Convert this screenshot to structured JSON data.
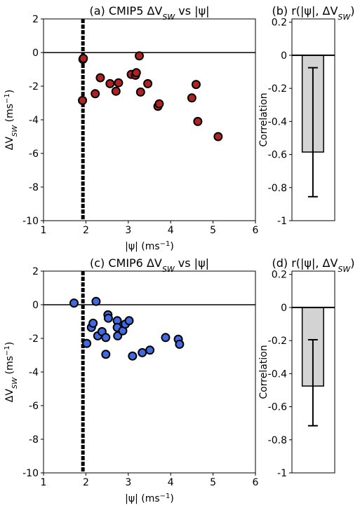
{
  "chart_data": [
    {
      "id": "a",
      "type": "scatter",
      "title": "(a) CMIP5 ΔVSW vs |ψ|",
      "title_parts": {
        "prefix": "(a) CMIP5 ΔV",
        "sub": "SW",
        "suffix": " vs |ψ|"
      },
      "xlabel_parts": {
        "prefix": "|ψ| (ms",
        "sup": "−1",
        "suffix": ")"
      },
      "ylabel_parts": {
        "prefix": "ΔV",
        "sub": "SW",
        "mid": " (ms",
        "sup": "−1",
        "suffix": ")"
      },
      "xlim": [
        1,
        6
      ],
      "ylim": [
        -10,
        2
      ],
      "xticks": [
        1,
        2,
        3,
        4,
        5,
        6
      ],
      "yticks": [
        2,
        0,
        -2,
        -4,
        -6,
        -8,
        -10
      ],
      "xtick_labels": [
        "1",
        "2",
        "3",
        "4",
        "5",
        "6"
      ],
      "ytick_labels": [
        "2",
        "0",
        "-2",
        "-4",
        "-6",
        "-8",
        "-10"
      ],
      "hline_y": 0,
      "vline_x": 1.93,
      "marker_color": "#b22222",
      "points": [
        {
          "x": 1.93,
          "y": -0.4
        },
        {
          "x": 1.94,
          "y": -0.35
        },
        {
          "x": 1.92,
          "y": -2.85
        },
        {
          "x": 2.22,
          "y": -2.45
        },
        {
          "x": 2.34,
          "y": -1.5
        },
        {
          "x": 2.57,
          "y": -1.85
        },
        {
          "x": 2.71,
          "y": -2.3
        },
        {
          "x": 2.77,
          "y": -1.8
        },
        {
          "x": 3.07,
          "y": -1.3
        },
        {
          "x": 3.17,
          "y": -1.35
        },
        {
          "x": 3.19,
          "y": -1.2
        },
        {
          "x": 3.26,
          "y": -0.2
        },
        {
          "x": 3.29,
          "y": -2.35
        },
        {
          "x": 3.46,
          "y": -1.85
        },
        {
          "x": 3.7,
          "y": -3.2
        },
        {
          "x": 3.73,
          "y": -3.05
        },
        {
          "x": 4.5,
          "y": -2.7
        },
        {
          "x": 4.6,
          "y": -1.9
        },
        {
          "x": 4.64,
          "y": -4.1
        },
        {
          "x": 5.12,
          "y": -5.0
        }
      ]
    },
    {
      "id": "b",
      "type": "bar",
      "title": "(b) r(|ψ|, ΔVSW)",
      "title_parts": {
        "prefix": "(b) r(|ψ|, ΔV",
        "sub": "SW",
        "suffix": ")"
      },
      "ylabel": "Correlation",
      "ylim": [
        -1,
        0.22
      ],
      "yticks": [
        0.2,
        0,
        -0.2,
        -0.4,
        -0.6,
        -0.8,
        -1
      ],
      "ytick_labels": [
        "0.2",
        "0",
        "-0.2",
        "-0.4",
        "-0.6",
        "-0.8",
        "-1"
      ],
      "value": -0.585,
      "error_low": -0.855,
      "error_high": -0.075,
      "bar_color": "#d3d3d3"
    },
    {
      "id": "c",
      "type": "scatter",
      "title": "(c) CMIP6 ΔVSW vs |ψ|",
      "title_parts": {
        "prefix": "(c) CMIP6 ΔV",
        "sub": "SW",
        "suffix": " vs |ψ|"
      },
      "xlabel_parts": {
        "prefix": "|ψ| (ms",
        "sup": "−1",
        "suffix": ")"
      },
      "ylabel_parts": {
        "prefix": "ΔV",
        "sub": "SW",
        "mid": " (ms",
        "sup": "−1",
        "suffix": ")"
      },
      "xlim": [
        1,
        6
      ],
      "ylim": [
        -10,
        2
      ],
      "xticks": [
        1,
        2,
        3,
        4,
        5,
        6
      ],
      "yticks": [
        2,
        0,
        -2,
        -4,
        -6,
        -8,
        -10
      ],
      "xtick_labels": [
        "1",
        "2",
        "3",
        "4",
        "5",
        "6"
      ],
      "ytick_labels": [
        "2",
        "0",
        "-2",
        "-4",
        "-6",
        "-8",
        "-10"
      ],
      "hline_y": 0,
      "vline_x": 1.93,
      "marker_color": "#4169e1",
      "points": [
        {
          "x": 1.72,
          "y": 0.1
        },
        {
          "x": 2.02,
          "y": -2.3
        },
        {
          "x": 2.13,
          "y": -1.35
        },
        {
          "x": 2.17,
          "y": -1.1
        },
        {
          "x": 2.24,
          "y": 0.2
        },
        {
          "x": 2.28,
          "y": -1.85
        },
        {
          "x": 2.38,
          "y": -1.6
        },
        {
          "x": 2.47,
          "y": -1.95
        },
        {
          "x": 2.47,
          "y": -2.95
        },
        {
          "x": 2.52,
          "y": -0.6
        },
        {
          "x": 2.53,
          "y": -0.8
        },
        {
          "x": 2.74,
          "y": -0.95
        },
        {
          "x": 2.74,
          "y": -1.35
        },
        {
          "x": 2.75,
          "y": -1.85
        },
        {
          "x": 2.87,
          "y": -1.55
        },
        {
          "x": 2.93,
          "y": -1.15
        },
        {
          "x": 3.02,
          "y": -0.95
        },
        {
          "x": 3.1,
          "y": -3.05
        },
        {
          "x": 3.33,
          "y": -2.85
        },
        {
          "x": 3.51,
          "y": -2.7
        },
        {
          "x": 3.88,
          "y": -1.95
        },
        {
          "x": 4.18,
          "y": -2.05
        },
        {
          "x": 4.21,
          "y": -2.35
        }
      ]
    },
    {
      "id": "d",
      "type": "bar",
      "title": "(d) r(|ψ|, ΔVSW)",
      "title_parts": {
        "prefix": "(d) r(|ψ|, ΔV",
        "sub": "SW",
        "suffix": ")"
      },
      "ylabel": "Correlation",
      "ylim": [
        -1,
        0.22
      ],
      "yticks": [
        0.2,
        0,
        -0.2,
        -0.4,
        -0.6,
        -0.8,
        -1
      ],
      "ytick_labels": [
        "0.2",
        "0",
        "-0.2",
        "-0.4",
        "-0.6",
        "-0.8",
        "-1"
      ],
      "value": -0.475,
      "error_low": -0.715,
      "error_high": -0.195,
      "bar_color": "#d3d3d3"
    }
  ]
}
